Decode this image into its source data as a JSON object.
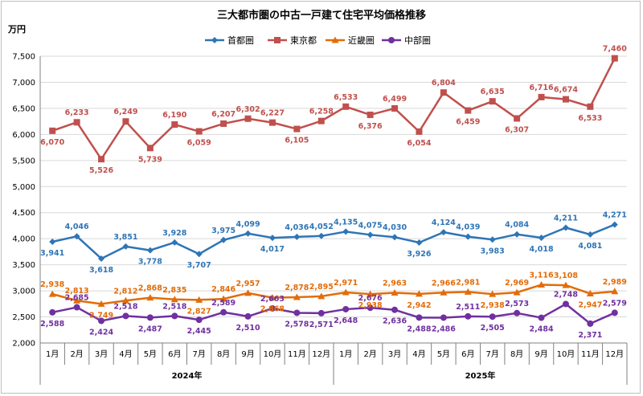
{
  "chart_data": {
    "type": "line",
    "title": "三大都市圏の中古一戸建て住宅平均価格推移",
    "ylabel": "万円",
    "ylim": [
      2000,
      7500
    ],
    "ytick_values": [
      2000,
      2500,
      3000,
      3500,
      4000,
      4500,
      5000,
      5500,
      6000,
      6500,
      7000,
      7500
    ],
    "ytick_labels": [
      "2,000",
      "2,500",
      "3,000",
      "3,500",
      "4,000",
      "4,500",
      "5,000",
      "5,500",
      "6,000",
      "6,500",
      "7,000",
      "7,500"
    ],
    "categories": [
      "1月",
      "2月",
      "3月",
      "4月",
      "5月",
      "6月",
      "7月",
      "8月",
      "9月",
      "10月",
      "11月",
      "12月",
      "1月",
      "2月",
      "3月",
      "4月",
      "5月",
      "6月",
      "7月",
      "8月",
      "9月",
      "10月",
      "11月",
      "12月"
    ],
    "year_groups": [
      {
        "label": "2024年",
        "start": 0,
        "end": 11
      },
      {
        "label": "2025年",
        "start": 12,
        "end": 23
      }
    ],
    "series": [
      {
        "name": "首都圏",
        "color": "#2e75b6",
        "marker": "diamond",
        "values": [
          3941,
          4046,
          3618,
          3851,
          3778,
          3928,
          3707,
          3975,
          4099,
          4017,
          4036,
          4052,
          4135,
          4075,
          4030,
          3926,
          4124,
          4039,
          3983,
          4084,
          4018,
          4211,
          4081,
          4271
        ],
        "labels": [
          "3,941",
          "4,046",
          "3,618",
          "3,851",
          "3,778",
          "3,928",
          "3,707",
          "3,975",
          "4,099",
          "4,017",
          "4,036",
          "4,052",
          "4,135",
          "4,075",
          "4,030",
          "3,926",
          "4,124",
          "4,039",
          "3,983",
          "4,084",
          "4,018",
          "4,211",
          "4,081",
          "4,271"
        ]
      },
      {
        "name": "東京都",
        "color": "#c0504d",
        "marker": "square",
        "values": [
          6070,
          6233,
          5526,
          6249,
          5739,
          6190,
          6059,
          6207,
          6302,
          6227,
          6105,
          6258,
          6533,
          6376,
          6499,
          6054,
          6804,
          6459,
          6635,
          6307,
          6716,
          6674,
          6533,
          7460
        ],
        "labels": [
          "6,070",
          "6,233",
          "5,526",
          "6,249",
          "5,739",
          "6,190",
          "6,059",
          "6,207",
          "6,302",
          "6,227",
          "6,105",
          "6,258",
          "6,533",
          "6,376",
          "6,499",
          "6,054",
          "6,804",
          "6,459",
          "6,635",
          "6,307",
          "6,716",
          "6,674",
          "6,533",
          "7,460"
        ]
      },
      {
        "name": "近畿圏",
        "color": "#e36c09",
        "marker": "triangle",
        "values": [
          2938,
          2813,
          2749,
          2812,
          2868,
          2835,
          2827,
          2846,
          2957,
          2868,
          2878,
          2895,
          2971,
          2938,
          2963,
          2942,
          2966,
          2981,
          2938,
          2969,
          3116,
          3108,
          2947,
          2989
        ],
        "labels": [
          "2,938",
          "2,813",
          "2,749",
          "2,812",
          "2,868",
          "2,835",
          "2,827",
          "2,846",
          "2,957",
          "2,868",
          "2,878",
          "2,895",
          "2,971",
          "2,938",
          "2,963",
          "2,942",
          "2,966",
          "2,981",
          "2,938",
          "2,969",
          "3,116",
          "3,108",
          "2,947",
          "2,989"
        ]
      },
      {
        "name": "中部圏",
        "color": "#7030a0",
        "marker": "circle",
        "values": [
          2588,
          2685,
          2424,
          2518,
          2487,
          2518,
          2445,
          2589,
          2510,
          2663,
          2578,
          2571,
          2648,
          2676,
          2636,
          2488,
          2486,
          2511,
          2505,
          2573,
          2484,
          2748,
          2371,
          2579
        ],
        "labels": [
          "2,588",
          "2,685",
          "2,424",
          "2,518",
          "2,487",
          "2,518",
          "2,445",
          "2,589",
          "2,510",
          "2,663",
          "2,578",
          "2,571",
          "2,648",
          "2,676",
          "2,636",
          "2,488",
          "2,486",
          "2,511",
          "2,505",
          "2,573",
          "2,484",
          "2,748",
          "2,371",
          "2,579"
        ]
      }
    ],
    "grid": true,
    "legend": "top-center"
  }
}
